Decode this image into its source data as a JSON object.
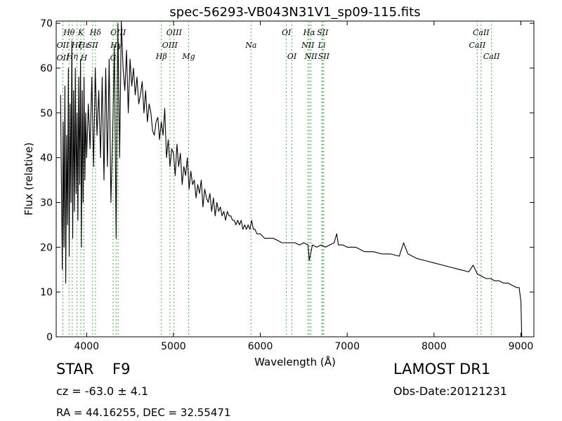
{
  "chart_data": {
    "type": "line",
    "title": "spec-56293-VB043N31V1_sp09-115.fits",
    "xlabel": "Wavelength (Å)",
    "ylabel": "Flux (relative)",
    "xlim": [
      3650,
      9150
    ],
    "ylim": [
      0,
      70.5
    ],
    "x_ticks": [
      4000,
      5000,
      6000,
      7000,
      8000,
      9000
    ],
    "y_ticks": [
      0,
      10,
      20,
      30,
      40,
      50,
      60,
      70
    ],
    "grid": false,
    "line_color": "#000000",
    "marker_color": "#55aa55",
    "series": [
      {
        "x": [
          3700,
          3720,
          3730,
          3740,
          3750,
          3760,
          3770,
          3780,
          3790,
          3800,
          3810,
          3820,
          3830,
          3840,
          3850,
          3860,
          3870,
          3880,
          3890,
          3900,
          3910,
          3920,
          3930,
          3940,
          3950,
          3960,
          3970,
          3980,
          3990,
          4000,
          4020,
          4040,
          4060,
          4080,
          4100,
          4120,
          4140,
          4160,
          4180,
          4200,
          4220,
          4240,
          4260,
          4280,
          4300,
          4320,
          4340,
          4360,
          4380,
          4400,
          4420,
          4440,
          4460,
          4480,
          4500,
          4520,
          4540,
          4560,
          4580,
          4600,
          4620,
          4640,
          4660,
          4680,
          4700,
          4720,
          4740,
          4760,
          4780,
          4800,
          4820,
          4840,
          4860,
          4880,
          4900,
          4920,
          4940,
          4960,
          4980,
          5000,
          5020,
          5040,
          5060,
          5080,
          5100,
          5120,
          5140,
          5160,
          5180,
          5200,
          5220,
          5240,
          5260,
          5280,
          5300,
          5320,
          5340,
          5360,
          5380,
          5400,
          5420,
          5440,
          5460,
          5480,
          5500,
          5520,
          5540,
          5560,
          5580,
          5600,
          5620,
          5640,
          5660,
          5680,
          5700,
          5720,
          5740,
          5760,
          5780,
          5800,
          5820,
          5840,
          5860,
          5880,
          5900,
          5920,
          5940,
          5960,
          5980,
          6000,
          6050,
          6100,
          6150,
          6200,
          6250,
          6300,
          6350,
          6400,
          6450,
          6500,
          6550,
          6563,
          6600,
          6650,
          6700,
          6750,
          6800,
          6850,
          6880,
          6900,
          6950,
          7000,
          7100,
          7200,
          7300,
          7400,
          7500,
          7600,
          7650,
          7700,
          7800,
          7900,
          8000,
          8100,
          8200,
          8300,
          8400,
          8450,
          8500,
          8550,
          8600,
          8650,
          8700,
          8750,
          8800,
          8850,
          8900,
          8950,
          8980,
          8990,
          9000,
          9010
        ],
        "y": [
          54,
          15,
          48,
          20,
          56,
          12,
          45,
          25,
          60,
          18,
          52,
          30,
          66,
          22,
          55,
          28,
          60,
          32,
          50,
          26,
          58,
          34,
          62,
          20,
          55,
          30,
          58,
          35,
          50,
          40,
          52,
          42,
          58,
          38,
          60,
          45,
          55,
          40,
          58,
          35,
          60,
          38,
          62,
          30,
          45,
          65,
          22,
          70,
          40,
          72,
          60,
          55,
          64,
          50,
          62,
          56,
          60,
          54,
          58,
          52,
          54,
          57,
          50,
          55,
          48,
          52,
          50,
          46,
          45,
          48,
          49,
          44,
          48,
          45,
          51,
          40,
          44,
          38,
          42,
          41,
          36,
          43,
          38,
          41,
          34,
          38,
          36,
          40,
          33,
          37,
          34,
          35,
          31,
          34,
          32,
          35,
          29,
          33,
          31,
          30,
          32,
          28,
          31,
          27,
          30,
          28,
          29,
          27,
          28,
          26,
          28,
          27,
          27,
          26,
          26,
          25,
          26,
          25,
          26,
          24,
          25,
          24,
          25,
          24,
          26,
          24,
          24,
          23,
          23,
          23,
          22,
          22,
          22,
          21.5,
          21,
          21,
          21,
          21,
          20.5,
          21,
          20.5,
          17,
          20.5,
          20,
          20.5,
          20,
          20.5,
          21,
          23,
          20.5,
          20.5,
          20,
          20,
          19,
          19,
          18.5,
          18.5,
          18,
          21,
          18.5,
          17.5,
          17,
          16.5,
          16,
          15.5,
          15,
          14.5,
          16,
          14,
          13.5,
          13,
          13,
          12.5,
          12.5,
          12,
          12,
          11.5,
          11,
          11,
          9.5,
          8,
          0
        ]
      }
    ],
    "line_markers": [
      {
        "label": "Hθ",
        "x": 3798,
        "row": 1
      },
      {
        "label": "OII",
        "x": 3727,
        "row": 2
      },
      {
        "label": "OII",
        "x": 3727,
        "row": 4
      },
      {
        "label": "Hη",
        "x": 3835,
        "row": 3
      },
      {
        "label": "K",
        "x": 3934,
        "row": 1
      },
      {
        "label": "Hζ",
        "x": 3889,
        "row": 2
      },
      {
        "label": "H",
        "x": 3969,
        "row": 4
      },
      {
        "label": "Hε",
        "x": 3970,
        "row": 2
      },
      {
        "label": "SII",
        "x": 4069,
        "row": 2
      },
      {
        "label": "Hδ",
        "x": 4102,
        "row": 1
      },
      {
        "label": "OIII",
        "x": 4363,
        "row": 1
      },
      {
        "label": "Hγ",
        "x": 4340,
        "row": 2
      },
      {
        "label": "G",
        "x": 4305,
        "row": 4
      },
      {
        "label": "OIII",
        "x": 5007,
        "row": 1
      },
      {
        "label": "OIII",
        "x": 4959,
        "row": 2
      },
      {
        "label": "Hβ",
        "x": 4861,
        "row": 3
      },
      {
        "label": "Mg",
        "x": 5175,
        "row": 3
      },
      {
        "label": "Na",
        "x": 5893,
        "row": 2
      },
      {
        "label": "OI",
        "x": 6300,
        "row": 1
      },
      {
        "label": "OI",
        "x": 6364,
        "row": 3
      },
      {
        "label": "Hα",
        "x": 6563,
        "row": 1
      },
      {
        "label": "SII",
        "x": 6717,
        "row": 1
      },
      {
        "label": "NII",
        "x": 6548,
        "row": 2
      },
      {
        "label": "Li",
        "x": 6708,
        "row": 2
      },
      {
        "label": "NII",
        "x": 6583,
        "row": 3
      },
      {
        "label": "SII",
        "x": 6731,
        "row": 3
      },
      {
        "label": "CaII",
        "x": 8542,
        "row": 1
      },
      {
        "label": "CaII",
        "x": 8498,
        "row": 2
      },
      {
        "label": "CaII",
        "x": 8662,
        "row": 3
      }
    ]
  },
  "info": {
    "object_class": "STAR",
    "subclass": "F9",
    "redshift": "cz = -63.0 ± 4.1",
    "coordinates": "RA = 44.16255, DEC = 32.55471",
    "survey": "LAMOST DR1",
    "obs_date": "Obs-Date:20121231"
  }
}
